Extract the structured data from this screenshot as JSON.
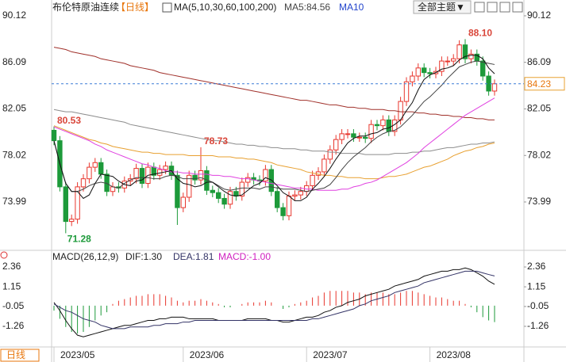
{
  "header": {
    "title": "布伦特原油连续",
    "period": "【日线】",
    "ma_label": "MA(5,10,30,60,100,200)",
    "ma5_label": "MA5:84.56",
    "ma10_label": "MA10",
    "theme_button": "全部主题▼"
  },
  "footer": {
    "tab": "日线"
  },
  "chart_data": [
    {
      "type": "candlestick",
      "up_color": "#e8362d",
      "down_color": "#1d9a3a",
      "ylim": [
        69.87,
        90.46
      ],
      "yticks": [
        90.12,
        86.09,
        82.05,
        78.02,
        73.99
      ],
      "open": [
        80.2,
        79.3,
        75.3,
        72.3,
        72.5,
        75.3,
        76.0,
        77.0,
        77.4,
        76.4,
        74.9,
        75.3,
        75.2,
        75.8,
        76.0,
        76.9,
        75.6,
        77.0,
        76.3,
        76.8,
        77.1,
        76.3,
        73.5,
        74.4,
        76.3,
        75.9,
        76.7,
        75.0,
        74.8,
        74.3,
        73.8,
        74.9,
        74.5,
        75.7,
        76.1,
        75.9,
        75.8,
        76.8,
        74.9,
        73.5,
        72.8,
        74.5,
        74.6,
        74.9,
        75.4,
        76.3,
        76.6,
        77.7,
        78.5,
        79.4,
        79.9,
        79.9,
        79.6,
        79.6,
        79.5,
        80.7,
        80.6,
        81.1,
        80.1,
        81.1,
        82.7,
        84.4,
        84.9,
        85.6,
        85.2,
        85.1,
        85.3,
        86.2,
        86.2,
        86.4,
        87.6,
        86.4,
        86.8,
        86.2,
        84.9,
        83.6
      ],
      "high": [
        80.53,
        79.7,
        75.7,
        72.9,
        75.7,
        76.4,
        77.4,
        77.8,
        77.8,
        76.8,
        75.7,
        75.7,
        76.2,
        76.4,
        77.3,
        77.3,
        77.4,
        77.4,
        77.2,
        77.5,
        77.5,
        76.7,
        74.8,
        76.7,
        76.7,
        78.73,
        77.1,
        75.4,
        75.2,
        74.7,
        75.3,
        75.3,
        76.1,
        76.5,
        76.5,
        76.3,
        77.2,
        77.2,
        75.3,
        73.9,
        74.9,
        75.0,
        75.3,
        75.8,
        76.7,
        77.0,
        78.1,
        78.9,
        79.8,
        80.3,
        80.3,
        80.3,
        80.0,
        80.0,
        81.1,
        81.1,
        81.5,
        81.5,
        81.5,
        83.1,
        84.8,
        85.3,
        86.0,
        86.0,
        85.6,
        85.7,
        86.6,
        86.6,
        86.8,
        88.0,
        88.1,
        87.2,
        87.2,
        86.6,
        85.3,
        84.6
      ],
      "low": [
        78.9,
        74.9,
        71.28,
        71.9,
        72.1,
        74.9,
        75.6,
        76.6,
        76.0,
        74.5,
        74.5,
        74.8,
        74.8,
        75.4,
        75.6,
        75.2,
        75.2,
        75.9,
        75.9,
        76.4,
        75.9,
        72.0,
        73.1,
        74.0,
        75.5,
        75.5,
        74.6,
        74.4,
        73.9,
        73.4,
        73.4,
        74.1,
        74.1,
        75.3,
        75.5,
        75.4,
        75.4,
        74.5,
        73.1,
        72.4,
        72.4,
        74.1,
        74.2,
        74.5,
        75.0,
        75.9,
        76.2,
        77.3,
        78.1,
        79.0,
        79.5,
        79.2,
        79.2,
        79.1,
        79.1,
        80.2,
        80.2,
        79.7,
        79.7,
        80.7,
        82.3,
        84.0,
        84.5,
        84.8,
        84.7,
        84.7,
        84.9,
        85.8,
        85.8,
        86.0,
        86.0,
        86.0,
        85.8,
        84.5,
        83.2,
        83.2
      ],
      "close": [
        79.3,
        75.3,
        72.3,
        72.5,
        75.3,
        76.0,
        77.0,
        77.4,
        76.4,
        74.9,
        75.3,
        75.2,
        75.8,
        76.0,
        76.9,
        75.6,
        77.0,
        76.3,
        76.8,
        77.1,
        76.3,
        73.5,
        74.4,
        76.3,
        75.9,
        76.7,
        75.0,
        74.8,
        74.3,
        73.8,
        74.9,
        74.5,
        75.7,
        76.1,
        75.9,
        75.8,
        76.8,
        74.9,
        73.5,
        72.8,
        74.5,
        74.6,
        74.9,
        75.4,
        76.3,
        76.6,
        77.7,
        78.5,
        79.4,
        79.9,
        79.9,
        79.6,
        79.6,
        79.5,
        80.7,
        80.6,
        81.1,
        80.1,
        81.1,
        82.7,
        84.4,
        84.9,
        85.6,
        85.2,
        85.1,
        85.3,
        86.2,
        86.2,
        86.4,
        87.6,
        86.4,
        86.8,
        86.2,
        84.9,
        83.6,
        84.23
      ],
      "series": [
        {
          "color": "#a0302a",
          "values": [
            87.4,
            87.3,
            87.2,
            87.0,
            86.9,
            86.8,
            86.7,
            86.6,
            86.4,
            86.3,
            86.2,
            86.1,
            86.0,
            85.8,
            85.7,
            85.6,
            85.5,
            85.4,
            85.2,
            85.1,
            85.0,
            84.9,
            84.8,
            84.7,
            84.6,
            84.5,
            84.4,
            84.3,
            84.2,
            84.1,
            84.0,
            83.9,
            83.8,
            83.7,
            83.6,
            83.5,
            83.4,
            83.3,
            83.2,
            83.1,
            83.0,
            82.9,
            82.8,
            82.8,
            82.7,
            82.6,
            82.5,
            82.4,
            82.4,
            82.3,
            82.2,
            82.2,
            82.1,
            82.1,
            82.0,
            82.0,
            82.0,
            81.9,
            81.9,
            81.8,
            81.8,
            81.8,
            81.7,
            81.7,
            81.6,
            81.6,
            81.5,
            81.5,
            81.4,
            81.4,
            81.3,
            81.3,
            81.2,
            81.2,
            81.1,
            81.1
          ]
        },
        {
          "color": "#8c8c8c",
          "values": [
            82.0,
            81.9,
            81.8,
            81.8,
            81.7,
            81.6,
            81.5,
            81.4,
            81.3,
            81.2,
            81.1,
            81.0,
            80.9,
            80.7,
            80.6,
            80.5,
            80.4,
            80.3,
            80.2,
            80.1,
            80.0,
            79.9,
            79.8,
            79.7,
            79.6,
            79.5,
            79.4,
            79.3,
            79.3,
            79.2,
            79.1,
            79.0,
            79.0,
            78.9,
            78.9,
            78.8,
            78.8,
            78.7,
            78.7,
            78.6,
            78.6,
            78.6,
            78.5,
            78.5,
            78.4,
            78.4,
            78.4,
            78.3,
            78.3,
            78.2,
            78.2,
            78.2,
            78.2,
            78.1,
            78.1,
            78.1,
            78.1,
            78.1,
            78.2,
            78.2,
            78.2,
            78.3,
            78.3,
            78.4,
            78.4,
            78.5,
            78.6,
            78.7,
            78.7,
            78.8,
            78.9,
            79.0,
            79.0,
            79.1,
            79.1,
            79.2
          ]
        },
        {
          "color": "#e8a030",
          "values": [
            80.6,
            80.4,
            80.2,
            80.0,
            79.8,
            79.6,
            79.4,
            79.3,
            79.1,
            79.0,
            78.8,
            78.7,
            78.6,
            78.5,
            78.4,
            78.3,
            78.3,
            78.2,
            78.2,
            78.1,
            78.1,
            78.1,
            78.1,
            78.0,
            78.0,
            78.0,
            78.0,
            78.0,
            77.9,
            77.9,
            77.9,
            77.8,
            77.8,
            77.7,
            77.7,
            77.6,
            77.5,
            77.4,
            77.2,
            77.1,
            77.0,
            76.9,
            76.8,
            76.6,
            76.5,
            76.4,
            76.3,
            76.3,
            76.2,
            76.2,
            76.1,
            76.1,
            76.1,
            76.0,
            76.0,
            76.0,
            76.1,
            76.2,
            76.2,
            76.3,
            76.4,
            76.6,
            76.8,
            77.0,
            77.1,
            77.3,
            77.5,
            77.7,
            78.0,
            78.2,
            78.4,
            78.5,
            78.7,
            78.8,
            79.0,
            79.1
          ]
        },
        {
          "color": "#e040e0",
          "values": [
            80.5,
            80.3,
            80.1,
            79.9,
            79.7,
            79.5,
            79.3,
            79.0,
            78.8,
            78.5,
            78.3,
            78.1,
            77.9,
            77.7,
            77.5,
            77.3,
            77.2,
            77.0,
            76.9,
            76.7,
            76.6,
            76.6,
            76.5,
            76.5,
            76.4,
            76.4,
            76.4,
            76.3,
            76.3,
            76.2,
            76.2,
            76.1,
            76.0,
            76.0,
            75.9,
            75.8,
            75.7,
            75.6,
            75.5,
            75.4,
            75.3,
            75.2,
            75.2,
            75.1,
            75.1,
            75.0,
            75.0,
            75.0,
            75.0,
            75.1,
            75.1,
            75.3,
            75.4,
            75.6,
            75.7,
            75.9,
            76.2,
            76.5,
            76.8,
            77.1,
            77.4,
            77.8,
            78.2,
            78.7,
            79.1,
            79.5,
            79.9,
            80.3,
            80.7,
            81.1,
            81.5,
            81.8,
            82.1,
            82.4,
            82.7,
            83.0
          ]
        },
        {
          "color": "#444444",
          "values": [
            79.3,
            77.3,
            75.6,
            74.9,
            74.9,
            75.1,
            75.4,
            75.6,
            75.7,
            75.6,
            75.3,
            75.2,
            75.6,
            75.9,
            76.1,
            76.1,
            76.1,
            76.0,
            76.0,
            76.2,
            76.3,
            76.2,
            76.0,
            76.0,
            76.0,
            76.1,
            75.9,
            75.7,
            75.4,
            75.1,
            75.0,
            75.1,
            75.2,
            75.2,
            75.2,
            75.1,
            75.3,
            75.3,
            75.2,
            75.1,
            75.1,
            75.1,
            75.0,
            74.9,
            75.0,
            75.1,
            75.2,
            75.5,
            76.1,
            76.8,
            77.4,
            77.9,
            78.3,
            78.7,
            79.2,
            79.6,
            79.9,
            80.1,
            80.2,
            80.5,
            81.0,
            81.5,
            82.1,
            82.7,
            83.1,
            83.6,
            84.1,
            84.7,
            85.2,
            85.7,
            85.9,
            86.1,
            86.2,
            86.1,
            86.0,
            85.9
          ]
        },
        {
          "color": "#111111",
          "values": [
            79.3,
            77.3,
            75.6,
            74.9,
            74.9,
            74.3,
            74.6,
            75.6,
            76.4,
            76.3,
            76.2,
            75.8,
            75.5,
            75.4,
            75.8,
            75.9,
            76.3,
            76.4,
            76.5,
            76.6,
            76.7,
            76.0,
            75.6,
            75.5,
            75.3,
            75.4,
            75.7,
            75.7,
            75.3,
            74.9,
            74.6,
            74.5,
            74.6,
            75.0,
            75.4,
            75.6,
            76.1,
            75.9,
            75.4,
            74.8,
            74.5,
            74.1,
            74.1,
            74.4,
            75.1,
            75.6,
            76.2,
            76.9,
            77.7,
            78.4,
            79.1,
            79.5,
            79.7,
            79.7,
            79.9,
            80.0,
            80.3,
            80.4,
            80.7,
            81.1,
            81.9,
            82.6,
            83.7,
            84.6,
            85.0,
            85.2,
            85.5,
            85.6,
            85.8,
            86.3,
            86.6,
            86.7,
            86.7,
            86.4,
            85.6,
            85.1
          ]
        }
      ],
      "high_labels": [
        {
          "value": 80.53,
          "label": "80.53"
        },
        {
          "value": 78.73,
          "label": "78.73"
        },
        {
          "value": 88.1,
          "label": "88.10"
        }
      ],
      "low_labels": [
        {
          "value": 71.28,
          "label": "71.28"
        }
      ],
      "last_price": {
        "value": 84.23,
        "label": "84.23"
      }
    },
    {
      "type": "macd",
      "title": "MACD(26,12,9)",
      "dif_label": "DIF:1.30",
      "dea_label": "DEA:1.81",
      "macd_label": "MACD:-1.00",
      "ylim": [
        -2.47,
        2.7
      ],
      "yticks": [
        2.36,
        1.15,
        -0.05,
        -1.26
      ],
      "categories": [
        "2023/05",
        null,
        null,
        null,
        null,
        null,
        null,
        null,
        null,
        null,
        null,
        null,
        null,
        null,
        null,
        null,
        null,
        null,
        null,
        null,
        null,
        null,
        "2023/06",
        null,
        null,
        null,
        null,
        null,
        null,
        null,
        null,
        null,
        null,
        null,
        null,
        null,
        null,
        null,
        null,
        null,
        null,
        null,
        null,
        "2023/07",
        null,
        null,
        null,
        null,
        null,
        null,
        null,
        null,
        null,
        null,
        null,
        null,
        null,
        null,
        null,
        null,
        null,
        null,
        null,
        null,
        "2023/08",
        null,
        null,
        null,
        null,
        null,
        null,
        null,
        null,
        null,
        null,
        null
      ],
      "histogram": [
        -0.3,
        -0.8,
        -1.3,
        -1.6,
        -1.7,
        -1.6,
        -1.3,
        -0.9,
        -0.6,
        -0.4,
        0.1,
        0.3,
        0.4,
        0.5,
        0.6,
        0.6,
        0.7,
        0.7,
        0.7,
        0.6,
        0.5,
        0.3,
        0.2,
        0.3,
        0.3,
        0.4,
        0.3,
        0.2,
        0.1,
        -0.1,
        -0.1,
        0.0,
        0.1,
        0.2,
        0.2,
        0.2,
        0.3,
        0.2,
        0.0,
        -0.2,
        -0.1,
        0.1,
        0.2,
        0.3,
        0.5,
        0.6,
        0.8,
        0.9,
        0.9,
        0.9,
        0.9,
        0.8,
        0.8,
        0.7,
        0.8,
        0.8,
        0.8,
        0.7,
        0.7,
        0.8,
        0.9,
        0.9,
        0.8,
        0.7,
        0.6,
        0.5,
        0.5,
        0.4,
        0.3,
        0.3,
        0.1,
        -0.1,
        -0.4,
        -0.7,
        -0.9,
        -1.0
      ],
      "series": [
        {
          "name": "DIF",
          "color": "#111111",
          "values": [
            0.2,
            -0.3,
            -0.9,
            -1.4,
            -1.8,
            -1.9,
            -1.8,
            -1.7,
            -1.6,
            -1.5,
            -1.4,
            -1.3,
            -1.2,
            -1.2,
            -1.1,
            -1.0,
            -0.9,
            -0.9,
            -0.8,
            -0.8,
            -0.7,
            -0.7,
            -0.7,
            -0.8,
            -0.8,
            -0.8,
            -0.8,
            -0.8,
            -0.9,
            -0.9,
            -0.9,
            -0.9,
            -0.9,
            -0.8,
            -0.8,
            -0.8,
            -0.8,
            -0.9,
            -0.9,
            -1.0,
            -1.0,
            -0.9,
            -0.8,
            -0.7,
            -0.7,
            -0.6,
            -0.4,
            -0.3,
            -0.1,
            0.0,
            0.2,
            0.3,
            0.4,
            0.6,
            0.7,
            0.8,
            0.9,
            1.0,
            1.2,
            1.3,
            1.4,
            1.5,
            1.6,
            1.8,
            1.9,
            2.0,
            2.1,
            2.1,
            2.2,
            2.2,
            2.3,
            2.2,
            2.0,
            1.8,
            1.5,
            1.3
          ]
        },
        {
          "name": "DEA",
          "color": "#333366",
          "values": [
            0.1,
            -0.1,
            -0.3,
            -0.4,
            -0.6,
            -0.8,
            -0.9,
            -1.0,
            -1.2,
            -1.3,
            -1.4,
            -1.4,
            -1.4,
            -1.3,
            -1.3,
            -1.3,
            -1.3,
            -1.2,
            -1.2,
            -1.1,
            -1.1,
            -1.1,
            -1.0,
            -1.0,
            -0.9,
            -0.9,
            -0.9,
            -0.9,
            -0.9,
            -0.9,
            -0.9,
            -0.9,
            -0.9,
            -0.9,
            -0.9,
            -0.9,
            -0.9,
            -0.9,
            -0.9,
            -0.9,
            -0.9,
            -0.9,
            -0.9,
            -0.9,
            -0.8,
            -0.8,
            -0.7,
            -0.6,
            -0.5,
            -0.4,
            -0.3,
            -0.2,
            0.0,
            0.1,
            0.3,
            0.4,
            0.5,
            0.6,
            0.8,
            0.9,
            1.0,
            1.1,
            1.2,
            1.4,
            1.5,
            1.6,
            1.7,
            1.8,
            1.9,
            2.0,
            2.1,
            2.1,
            2.1,
            2.0,
            1.9,
            1.81
          ]
        }
      ],
      "up_color": "#e8362d",
      "down_color": "#1d9a3a"
    }
  ]
}
